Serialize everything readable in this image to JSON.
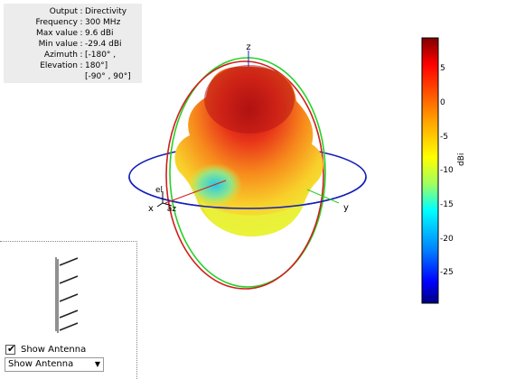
{
  "info": {
    "rows": [
      {
        "key": "Output",
        "value": "Directivity"
      },
      {
        "key": "Frequency",
        "value": "300 MHz"
      },
      {
        "key": "Max value",
        "value": "9.6 dBi"
      },
      {
        "key": "Min value",
        "value": "-29.4 dBi"
      },
      {
        "key": "Azimuth",
        "value": "[-180° ,"
      },
      {
        "key": "Elevation",
        "value": "180°]"
      }
    ],
    "extra": "[-90° , 90°]"
  },
  "axes": {
    "x": "x",
    "y": "y",
    "z": "z",
    "el": "el",
    "az": "az"
  },
  "colorbar": {
    "unit": "dBi",
    "ticks": [
      "5",
      "0",
      "-5",
      "-10",
      "-15",
      "-20",
      "-25"
    ],
    "max": 9.6,
    "min": -29.4
  },
  "antenna": {
    "checkbox_label": "Show Antenna",
    "checked": true,
    "dropdown_value": "Show Antenna"
  }
}
